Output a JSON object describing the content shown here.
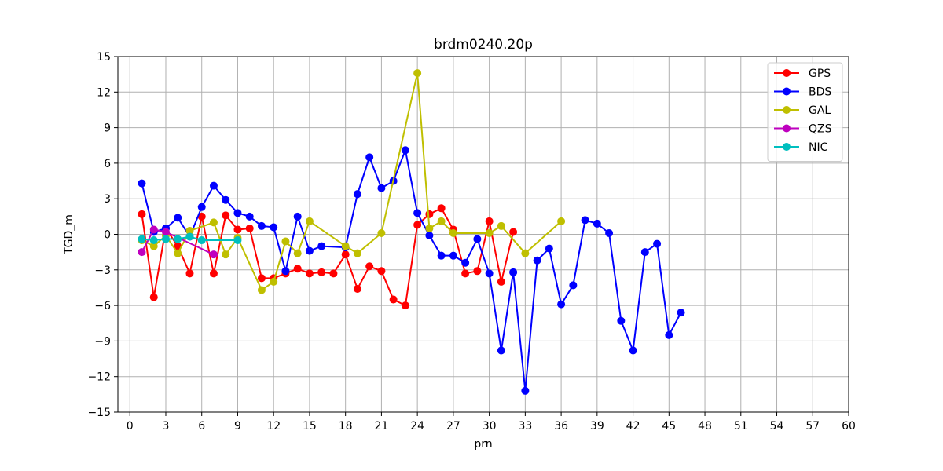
{
  "chart_data": {
    "type": "line",
    "title": "brdm0240.20p",
    "xlabel": "prn",
    "ylabel": "TGD_m",
    "xlim": [
      -1,
      60
    ],
    "ylim": [
      -15,
      15
    ],
    "xticks": [
      0,
      3,
      6,
      9,
      12,
      15,
      18,
      21,
      24,
      27,
      30,
      33,
      36,
      39,
      42,
      45,
      48,
      51,
      54,
      57,
      60
    ],
    "yticks": [
      -15,
      -12,
      -9,
      -6,
      -3,
      0,
      3,
      6,
      9,
      12,
      15
    ],
    "grid": true,
    "legend_position": "top-right",
    "series": [
      {
        "name": "GPS",
        "color": "#ff0000",
        "points": [
          [
            1,
            1.7
          ],
          [
            2,
            -5.3
          ],
          [
            3,
            0.5
          ],
          [
            4,
            -1.0
          ],
          [
            5,
            -3.3
          ],
          [
            6,
            1.5
          ],
          [
            7,
            -3.3
          ],
          [
            8,
            1.6
          ],
          [
            9,
            0.4
          ],
          [
            10,
            0.5
          ],
          [
            11,
            -3.7
          ],
          [
            12,
            -3.7
          ],
          [
            13,
            -3.3
          ],
          [
            14,
            -2.9
          ],
          [
            15,
            -3.3
          ],
          [
            16,
            -3.2
          ],
          [
            17,
            -3.3
          ],
          [
            18,
            -1.7
          ],
          [
            19,
            -4.6
          ],
          [
            20,
            -2.7
          ],
          [
            21,
            -3.1
          ],
          [
            22,
            -5.5
          ],
          [
            23,
            -6.0
          ],
          [
            24,
            0.8
          ],
          [
            25,
            1.7
          ],
          [
            26,
            2.2
          ],
          [
            27,
            0.4
          ],
          [
            28,
            -3.3
          ],
          [
            29,
            -3.1
          ],
          [
            30,
            1.1
          ],
          [
            31,
            -4.0
          ],
          [
            32,
            0.2
          ]
        ]
      },
      {
        "name": "BDS",
        "color": "#0000ff",
        "points": [
          [
            1,
            4.3
          ],
          [
            2,
            0.2
          ],
          [
            3,
            0.5
          ],
          [
            4,
            1.4
          ],
          [
            5,
            -0.2
          ],
          [
            6,
            2.3
          ],
          [
            7,
            4.1
          ],
          [
            8,
            2.9
          ],
          [
            9,
            1.8
          ],
          [
            10,
            1.5
          ],
          [
            11,
            0.7
          ],
          [
            12,
            0.6
          ],
          [
            13,
            -3.1
          ],
          [
            14,
            1.5
          ],
          [
            15,
            -1.4
          ],
          [
            16,
            -1.0
          ],
          [
            18,
            -1.1
          ],
          [
            19,
            3.4
          ],
          [
            20,
            6.5
          ],
          [
            21,
            3.9
          ],
          [
            22,
            4.5
          ],
          [
            23,
            7.1
          ],
          [
            24,
            1.8
          ],
          [
            25,
            -0.1
          ],
          [
            26,
            -1.8
          ],
          [
            27,
            -1.8
          ],
          [
            28,
            -2.4
          ],
          [
            29,
            -0.4
          ],
          [
            30,
            -3.3
          ],
          [
            31,
            -9.8
          ],
          [
            32,
            -3.2
          ],
          [
            33,
            -13.2
          ],
          [
            34,
            -2.2
          ],
          [
            35,
            -1.2
          ],
          [
            36,
            -5.9
          ],
          [
            37,
            -4.3
          ],
          [
            38,
            1.2
          ],
          [
            39,
            0.9
          ],
          [
            40,
            0.1
          ],
          [
            41,
            -7.3
          ],
          [
            42,
            -9.8
          ],
          [
            43,
            -1.5
          ],
          [
            44,
            -0.8
          ],
          [
            45,
            -8.5
          ],
          [
            46,
            -6.6
          ]
        ]
      },
      {
        "name": "GAL",
        "color": "#bfbf00",
        "points": [
          [
            1,
            -0.5
          ],
          [
            2,
            -1.0
          ],
          [
            3,
            -0.1
          ],
          [
            4,
            -1.6
          ],
          [
            5,
            0.3
          ],
          [
            7,
            1.0
          ],
          [
            8,
            -1.7
          ],
          [
            9,
            -0.3
          ],
          [
            11,
            -4.7
          ],
          [
            12,
            -4.0
          ],
          [
            13,
            -0.6
          ],
          [
            14,
            -1.6
          ],
          [
            15,
            1.1
          ],
          [
            18,
            -1.0
          ],
          [
            19,
            -1.6
          ],
          [
            21,
            0.1
          ],
          [
            24,
            13.6
          ],
          [
            25,
            0.5
          ],
          [
            26,
            1.1
          ],
          [
            27,
            0.1
          ],
          [
            30,
            0.1
          ],
          [
            31,
            0.7
          ],
          [
            33,
            -1.6
          ],
          [
            36,
            1.1
          ]
        ]
      },
      {
        "name": "QZS",
        "color": "#bf00bf",
        "points": [
          [
            1,
            -1.5
          ],
          [
            2,
            0.4
          ],
          [
            3,
            0.2
          ],
          [
            7,
            -1.7
          ]
        ]
      },
      {
        "name": "NIC",
        "color": "#00bfbf",
        "points": [
          [
            1,
            -0.4
          ],
          [
            2,
            -0.5
          ],
          [
            3,
            -0.4
          ],
          [
            4,
            -0.4
          ],
          [
            5,
            -0.2
          ],
          [
            6,
            -0.5
          ],
          [
            9,
            -0.5
          ]
        ]
      }
    ]
  }
}
